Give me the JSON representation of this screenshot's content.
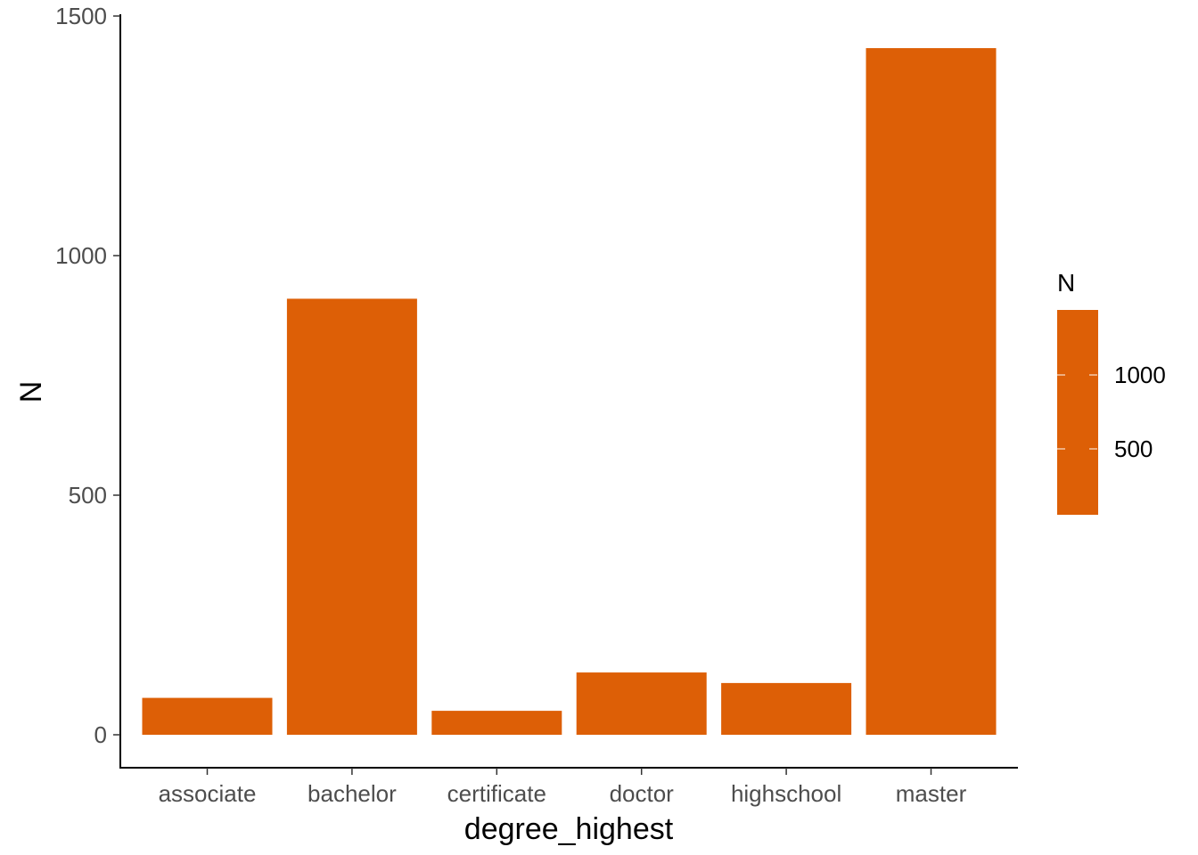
{
  "chart_data": {
    "type": "bar",
    "title": "",
    "xlabel": "degree_highest",
    "ylabel": "N",
    "categories": [
      "associate",
      "bachelor",
      "certificate",
      "doctor",
      "highschool",
      "master"
    ],
    "values": [
      77,
      910,
      50,
      130,
      108,
      1433
    ],
    "ylim": [
      0,
      1500
    ],
    "yticks": [
      0,
      500,
      1000,
      1500
    ],
    "bar_color": "#DD5F06",
    "grid": false,
    "legend": {
      "title": "N",
      "placement": "right",
      "ticks": [
        1000,
        500
      ],
      "color": "#DD5F06"
    }
  }
}
